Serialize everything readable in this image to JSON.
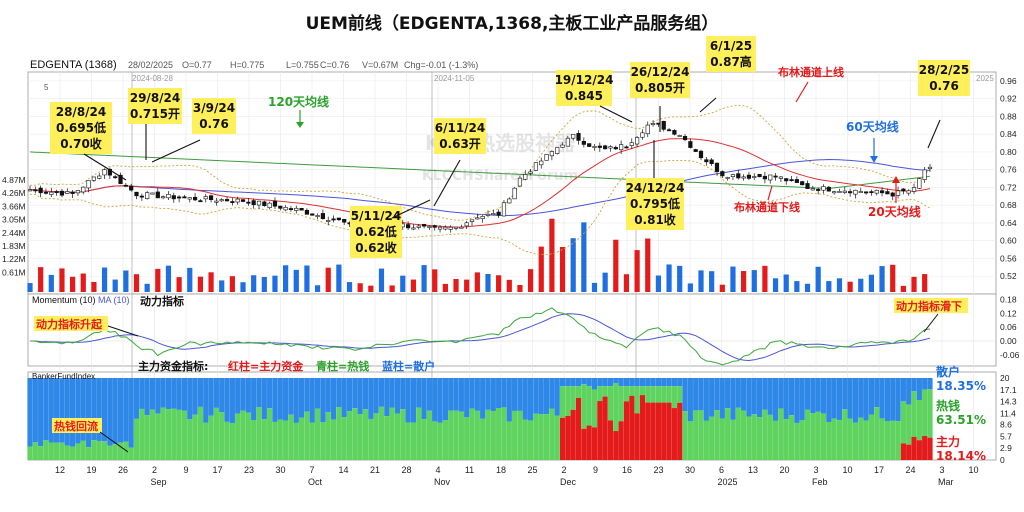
{
  "title": "UEM前线（EDGENTA,1368,主板工业产品服务组）",
  "ohlc_bar": {
    "symbol": "EDGENTA (1368)",
    "date": "28/02/2025",
    "open": "O=0.77",
    "high": "H=0.775",
    "low": "L=0.755",
    "close": "C=0.76",
    "volume": "V=0.67M",
    "change": "Chg=-0.01 (-1.3%)"
  },
  "watermark": "KLCI热选股神器",
  "watermark_sub": "KLCCHSharesForum",
  "date_marks": [
    "2024-08-28",
    "2024-11-05",
    "2025"
  ],
  "legend_small": "5",
  "colors": {
    "up": "#e31b1b",
    "down": "#1f6fe0",
    "hot": "#5fd35f",
    "ma20": "#e03030",
    "ma60": "#4a55d8",
    "ma120": "#3f9a3f",
    "boll": "#d2a23c",
    "callout_bg": "#ffef5a"
  },
  "x_labels": [
    {
      "label": "12",
      "sub": ""
    },
    {
      "label": "19",
      "sub": ""
    },
    {
      "label": "26",
      "sub": ""
    },
    {
      "label": "2",
      "sub": "Sep"
    },
    {
      "label": "9",
      "sub": ""
    },
    {
      "label": "17",
      "sub": ""
    },
    {
      "label": "23",
      "sub": ""
    },
    {
      "label": "30",
      "sub": ""
    },
    {
      "label": "7",
      "sub": "Oct"
    },
    {
      "label": "14",
      "sub": ""
    },
    {
      "label": "21",
      "sub": ""
    },
    {
      "label": "28",
      "sub": ""
    },
    {
      "label": "4",
      "sub": "Nov"
    },
    {
      "label": "11",
      "sub": ""
    },
    {
      "label": "18",
      "sub": ""
    },
    {
      "label": "25",
      "sub": ""
    },
    {
      "label": "2",
      "sub": "Dec"
    },
    {
      "label": "9",
      "sub": ""
    },
    {
      "label": "16",
      "sub": ""
    },
    {
      "label": "23",
      "sub": ""
    },
    {
      "label": "30",
      "sub": ""
    },
    {
      "label": "6",
      "sub": "2025"
    },
    {
      "label": "13",
      "sub": ""
    },
    {
      "label": "20",
      "sub": ""
    },
    {
      "label": "3",
      "sub": "Feb"
    },
    {
      "label": "10",
      "sub": ""
    },
    {
      "label": "17",
      "sub": ""
    },
    {
      "label": "24",
      "sub": ""
    },
    {
      "label": "3",
      "sub": "Mar"
    },
    {
      "label": "10",
      "sub": ""
    }
  ],
  "price_axis": [
    "0.96",
    "0.92",
    "0.88",
    "0.84",
    "0.80",
    "0.76",
    "0.72",
    "0.68",
    "0.64",
    "0.60",
    "0.56",
    "0.52"
  ],
  "volume_axis": [
    "4.87M",
    "4.26M",
    "3.66M",
    "3.05M",
    "2.44M",
    "1.83M",
    "1.22M",
    "0.61M"
  ],
  "momentum_label": "Momentum (10)",
  "momentum_ma_label": "MA (10)",
  "momentum_cn": "动力指标",
  "momentum_axis": [
    "0.18",
    "0.12",
    "0.06",
    "0.00",
    "-0.06"
  ],
  "fund_label": "BankerFundIndex",
  "fund_axis": [
    "20",
    "17.1",
    "14.3",
    "11.4",
    "8.6",
    "5.7",
    "2.9",
    "0"
  ],
  "fund_title": "主力资金指标:",
  "fund_red": "红柱=主力资金",
  "fund_green": "青柱=热钱",
  "fund_blue": "蓝柱=散户",
  "fund_retail_name": "散户",
  "fund_retail_pct": "18.35%",
  "fund_hot_name": "热钱",
  "fund_hot_pct": "63.51%",
  "fund_main_name": "主力",
  "fund_main_pct": "18.14%",
  "callouts": [
    {
      "id": "c1",
      "lines": [
        "28/8/24",
        "0.695低",
        "0.70收"
      ]
    },
    {
      "id": "c2",
      "lines": [
        "29/8/24",
        "0.715开"
      ]
    },
    {
      "id": "c3",
      "lines": [
        "3/9/24",
        "0.76"
      ]
    },
    {
      "id": "c4",
      "lines": [
        "6/11/24",
        "0.63开"
      ]
    },
    {
      "id": "c5",
      "lines": [
        "5/11/24",
        "0.62低",
        "0.62收"
      ]
    },
    {
      "id": "c6",
      "lines": [
        "19/12/24",
        "0.845"
      ]
    },
    {
      "id": "c7",
      "lines": [
        "26/12/24",
        "0.805开"
      ]
    },
    {
      "id": "c8",
      "lines": [
        "6/1/25",
        "0.87高"
      ]
    },
    {
      "id": "c9",
      "lines": [
        "24/12/24",
        "0.795低",
        "0.81收"
      ]
    },
    {
      "id": "c10",
      "lines": [
        "28/2/25",
        "0.76"
      ]
    }
  ],
  "labels": {
    "ma120": "120天均线",
    "boll_up": "布林通道上线",
    "boll_down": "布林通道下线",
    "ma60": "60天均线",
    "ma20": "20天均线",
    "mom_up": "动力指标升起",
    "mom_down": "动力指标滑下",
    "hot_back": "热钱回流"
  },
  "chart_data": {
    "type": "candlestick",
    "title": "UEM前线（EDGENTA,1368,主板工业产品服务组）",
    "ylim": [
      0.48,
      0.98
    ],
    "price_ticks": [
      0.96,
      0.92,
      0.88,
      0.84,
      0.8,
      0.76,
      0.72,
      0.68,
      0.64,
      0.6,
      0.56,
      0.52
    ],
    "key_points": [
      {
        "date": "28/8/24",
        "low": 0.695,
        "close": 0.7
      },
      {
        "date": "29/8/24",
        "open": 0.715
      },
      {
        "date": "3/9/24",
        "price": 0.76
      },
      {
        "date": "5/11/24",
        "low": 0.62,
        "close": 0.62
      },
      {
        "date": "6/11/24",
        "open": 0.63
      },
      {
        "date": "19/12/24",
        "price": 0.845
      },
      {
        "date": "24/12/24",
        "low": 0.795,
        "close": 0.81
      },
      {
        "date": "26/12/24",
        "open": 0.805
      },
      {
        "date": "6/1/25",
        "high": 0.87
      },
      {
        "date": "28/2/25",
        "price": 0.76
      }
    ],
    "last": {
      "date": "28/02/2025",
      "open": 0.77,
      "high": 0.775,
      "low": 0.755,
      "close": 0.76,
      "volume": "0.67M",
      "change": "-0.01 (-1.3%)"
    },
    "anchors": [
      [
        0,
        0.715
      ],
      [
        8,
        0.705
      ],
      [
        14,
        0.76
      ],
      [
        20,
        0.705
      ],
      [
        30,
        0.695
      ],
      [
        40,
        0.69
      ],
      [
        50,
        0.67
      ],
      [
        58,
        0.645
      ],
      [
        62,
        0.625
      ],
      [
        64,
        0.63
      ],
      [
        70,
        0.635
      ],
      [
        76,
        0.625
      ],
      [
        80,
        0.63
      ],
      [
        84,
        0.655
      ],
      [
        88,
        0.66
      ],
      [
        92,
        0.74
      ],
      [
        96,
        0.78
      ],
      [
        100,
        0.82
      ],
      [
        102,
        0.835
      ],
      [
        106,
        0.81
      ],
      [
        108,
        0.805
      ],
      [
        112,
        0.815
      ],
      [
        116,
        0.86
      ],
      [
        118,
        0.86
      ],
      [
        122,
        0.84
      ],
      [
        126,
        0.79
      ],
      [
        130,
        0.75
      ],
      [
        134,
        0.745
      ],
      [
        140,
        0.745
      ],
      [
        146,
        0.72
      ],
      [
        152,
        0.715
      ],
      [
        158,
        0.71
      ],
      [
        162,
        0.705
      ],
      [
        166,
        0.715
      ],
      [
        168,
        0.76
      ]
    ],
    "volume_ticks": [
      "4.87M",
      "4.26M",
      "3.66M",
      "3.05M",
      "2.44M",
      "1.83M",
      "1.22M",
      "0.61M"
    ],
    "momentum_ticks": [
      0.18,
      0.12,
      0.06,
      0.0,
      -0.06
    ],
    "fund_ticks": [
      20,
      17.1,
      14.3,
      11.4,
      8.6,
      5.7,
      2.9,
      0
    ],
    "fund_last": {
      "retail": "18.35%",
      "hot": "63.51%",
      "main": "18.14%"
    }
  }
}
